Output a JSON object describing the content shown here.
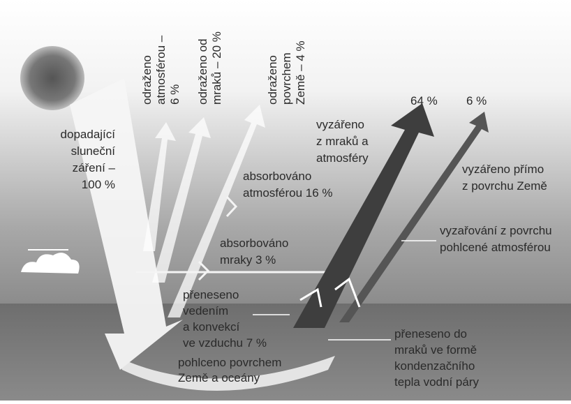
{
  "diagram": {
    "reflected_atmosphere": [
      "odraženo",
      "atmosférou –",
      "6 %"
    ],
    "reflected_clouds": [
      "odraženo od",
      "mraků – 20 %"
    ],
    "reflected_surface": [
      "odraženo",
      "povrchem",
      "Země – 4 %"
    ],
    "emitted_total": "64 %",
    "emitted_direct_total": "6 %",
    "emitted_clouds": [
      "vyzářeno",
      "z mraků a",
      "atmosféry"
    ],
    "incoming": [
      "dopadající",
      "sluneční",
      "záření –",
      "100 %"
    ],
    "emitted_direct": [
      "vyzářeno přímo",
      "z povrchu Země"
    ],
    "absorbed_atmosphere": [
      "absorbováno",
      "atmosférou 16 %"
    ],
    "surface_radiation_absorbed": [
      "vyzařování z povrchu",
      "pohlcené atmosférou"
    ],
    "absorbed_clouds": [
      "absorbováno",
      "mraky 3 %"
    ],
    "convection": [
      "přeneseno",
      "vedením",
      "a konvekcí",
      "ve vzduchu 7 %"
    ],
    "absorbed_surface": [
      "pohlceno povrchem",
      "Země a oceány"
    ],
    "latent_heat": [
      "přeneseno do",
      "mraků ve formě",
      "kondenzačního",
      "tepla vodní páry"
    ]
  }
}
